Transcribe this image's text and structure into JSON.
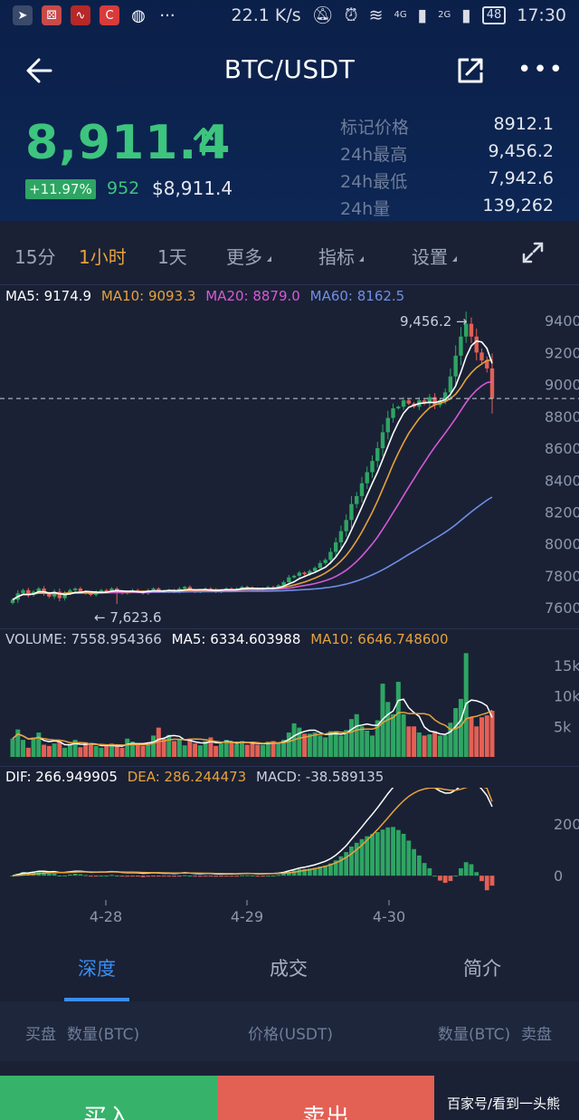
{
  "status": {
    "speed": "22.1 K/s",
    "net1": "4G",
    "net2": "2G",
    "battery": "48",
    "time": "17:30"
  },
  "header": {
    "title": "BTC/USDT",
    "icons": {
      "back": "back-arrow-icon",
      "share": "share-icon",
      "more": "more-icon"
    }
  },
  "ticker": {
    "price": "8,911.4",
    "change_pct": "+11.97%",
    "count": "952",
    "usd_price": "$8,911.4",
    "stats": [
      {
        "label": "标记价格",
        "value": "8912.1"
      },
      {
        "label": "24h最高",
        "value": "9,456.2"
      },
      {
        "label": "24h最低",
        "value": "7,942.6"
      },
      {
        "label": "24h量",
        "value": "139,262"
      }
    ]
  },
  "toolbar": {
    "intervals": [
      "15分",
      "1小时",
      "1天"
    ],
    "active_interval": "1小时",
    "more": "更多",
    "indicator": "指标",
    "settings": "设置"
  },
  "main_legend": {
    "ma5": "MA5: 9174.9",
    "ma10": "MA10: 9093.3",
    "ma20": "MA20: 8879.0",
    "ma60": "MA60: 8162.5"
  },
  "vol_legend": {
    "volume": "VOLUME: 7558.954366",
    "ma5": "MA5: 6334.603988",
    "ma10": "MA10: 6646.748600"
  },
  "macd_legend": {
    "dif": "DIF: 266.949905",
    "dea": "DEA: 286.244473",
    "macd": "MACD: -38.589135"
  },
  "colors": {
    "up": "#2ea563",
    "down": "#e36055",
    "ma5": "#ffffff",
    "ma10": "#e6a23c",
    "ma20": "#d659d6",
    "ma60": "#6f8fe6",
    "active_tab": "#3b8ef0"
  },
  "chart_data": [
    {
      "type": "candlestick",
      "title": "",
      "y_ticks": [
        "9400",
        "9200",
        "9000",
        "8800",
        "8600",
        "8400",
        "8200",
        "8000",
        "7800",
        "7600"
      ],
      "ylim": [
        7550,
        9480
      ],
      "x_ticks": [
        "4-28",
        "4-29",
        "4-30"
      ],
      "high_label": "9,456.2 →",
      "low_label": "← 7,623.6",
      "high_value": 9456.2,
      "low_value": 7623.6,
      "last_price": 8911.4,
      "closes": [
        7650,
        7690,
        7710,
        7680,
        7700,
        7720,
        7690,
        7670,
        7700,
        7660,
        7690,
        7710,
        7720,
        7700,
        7690,
        7680,
        7700,
        7710,
        7705,
        7720,
        7700,
        7690,
        7700,
        7710,
        7700,
        7690,
        7710,
        7720,
        7705,
        7700,
        7710,
        7700,
        7720,
        7730,
        7710,
        7700,
        7705,
        7720,
        7715,
        7700,
        7710,
        7720,
        7715,
        7720,
        7730,
        7725,
        7720,
        7710,
        7720,
        7730,
        7725,
        7740,
        7760,
        7790,
        7800,
        7820,
        7810,
        7830,
        7850,
        7880,
        7900,
        7950,
        8010,
        8080,
        8150,
        8250,
        8300,
        8380,
        8450,
        8520,
        8600,
        8700,
        8790,
        8850,
        8860,
        8900,
        8880,
        8860,
        8900,
        8880,
        8920,
        8870,
        8900,
        8950,
        9050,
        9180,
        9300,
        9380,
        9300,
        9200,
        9150,
        9100,
        8911.4
      ],
      "ma5_last": 9174.9,
      "ma10_last": 9093.3,
      "ma20_last": 8879.0,
      "ma60_last": 8162.5
    },
    {
      "type": "bar",
      "title": "",
      "y_ticks": [
        "15k",
        "10k",
        "5k"
      ],
      "ylim": [
        0,
        17500
      ],
      "values": [
        3000,
        4500,
        2800,
        1500,
        3200,
        4000,
        2000,
        1800,
        2200,
        2500,
        1500,
        2000,
        2800,
        1600,
        2400,
        2000,
        1800,
        1500,
        1800,
        2200,
        1800,
        1500,
        3000,
        2500,
        2000,
        1800,
        2200,
        3500,
        4800,
        3000,
        3600,
        2600,
        2800,
        1900,
        2800,
        2200,
        1900,
        2600,
        3200,
        1800,
        2200,
        2800,
        2400,
        2100,
        2600,
        2000,
        2400,
        2000,
        2000,
        2500,
        2600,
        2300,
        2800,
        4000,
        5500,
        4800,
        3800,
        3800,
        4000,
        3500,
        3200,
        4200,
        4200,
        3500,
        4400,
        6200,
        7000,
        5000,
        4300,
        3500,
        6000,
        12000,
        9000,
        7000,
        12300,
        7000,
        5000,
        5000,
        4000,
        3500,
        3700,
        4200,
        3500,
        3600,
        5600,
        8000,
        9500,
        17000,
        6500,
        5000,
        6500,
        6800,
        7559
      ],
      "ma5_last": 6334.603988,
      "ma10_last": 6646.7486
    },
    {
      "type": "macd",
      "title": "",
      "y_ticks": [
        "200",
        "0"
      ],
      "ylim": [
        -80,
        340
      ],
      "dif_last": 266.949905,
      "dea_last": 286.244473,
      "macd_last": -38.589135
    }
  ],
  "tabs": [
    "深度",
    "成交",
    "简介"
  ],
  "active_tab": "深度",
  "book_header": {
    "bid": "买盘",
    "bid_qty": "数量(BTC)",
    "price": "价格(USDT)",
    "ask_qty": "数量(BTC)",
    "ask": "卖盘"
  },
  "actions": {
    "buy": "买入",
    "sell": "卖出"
  },
  "watermark": "百家号/看到一头熊"
}
